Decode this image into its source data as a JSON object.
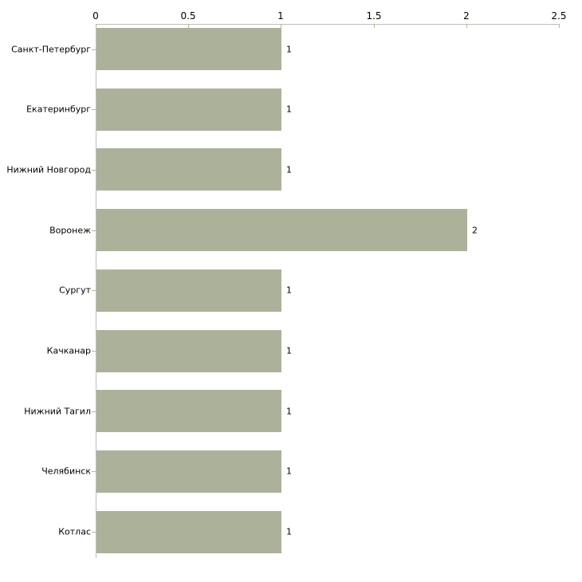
{
  "chart_data": {
    "type": "bar",
    "orientation": "horizontal",
    "title": "",
    "xlabel": "",
    "ylabel": "",
    "categories": [
      "Санкт-Петербург",
      "Екатеринбург",
      "Нижний Новгород",
      "Воронеж",
      "Сургут",
      "Качканар",
      "Нижний Тагил",
      "Челябинск",
      "Котлас"
    ],
    "values": [
      1,
      1,
      1,
      2,
      1,
      1,
      1,
      1,
      1
    ],
    "value_labels": [
      "1",
      "1",
      "1",
      "2",
      "1",
      "1",
      "1",
      "1",
      "1"
    ],
    "xlim": [
      0,
      2.5
    ],
    "x_tick_values": [
      0,
      0.5,
      1,
      1.5,
      2,
      2.5
    ],
    "x_tick_labels": [
      "0",
      "0.5",
      "1",
      "1.5",
      "2",
      "2.5"
    ],
    "grid": "off",
    "legend": "none",
    "colors": {
      "bar": "#abb299",
      "axis_line": "#bdbdbd",
      "tick": "#b6b88d",
      "text": "#000000",
      "background": "#ffffff"
    }
  }
}
